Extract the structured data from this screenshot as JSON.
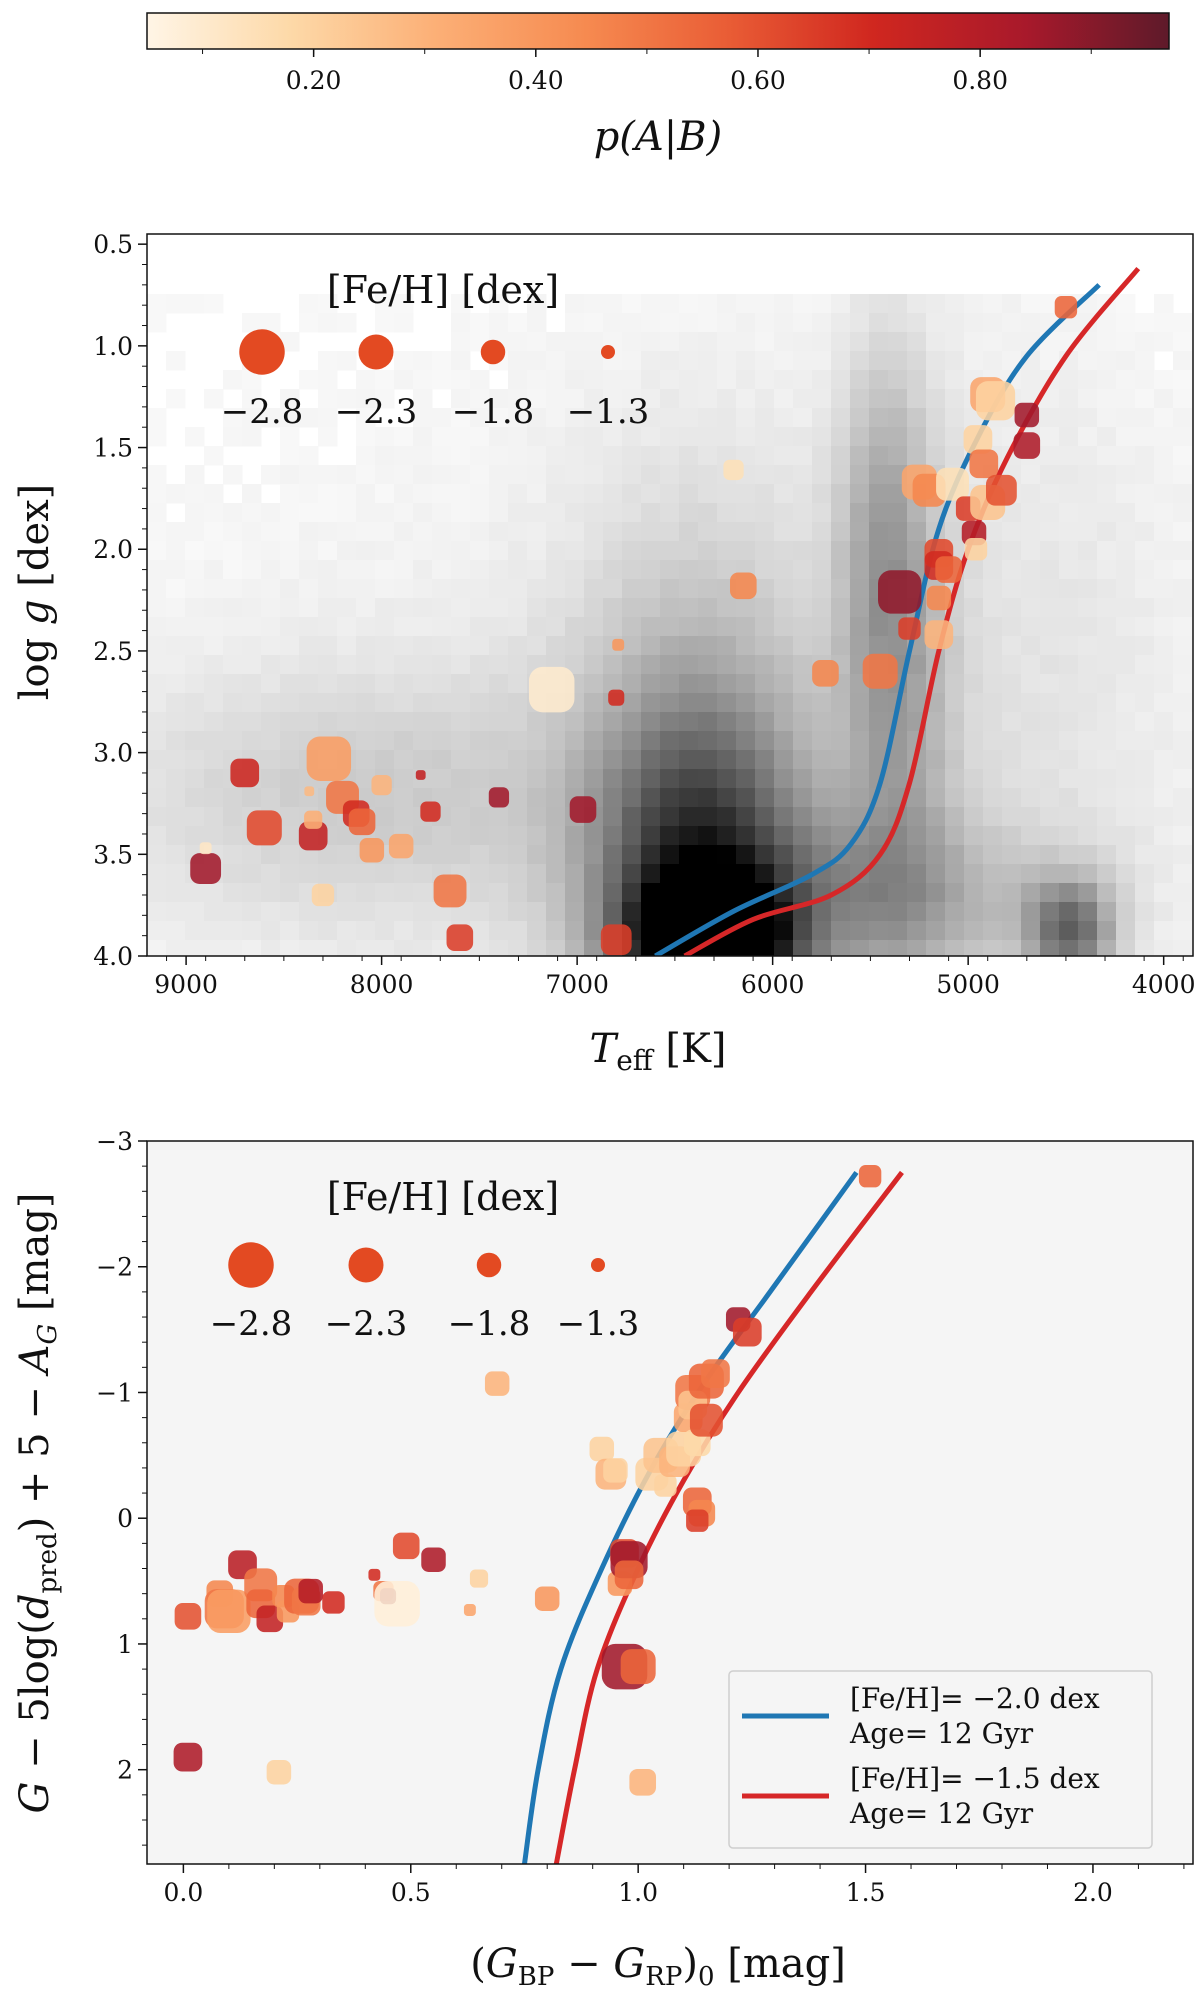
{
  "colorbar": {
    "label": "p(A|B)",
    "ticks": [
      "0.20",
      "0.40",
      "0.60",
      "0.80"
    ],
    "tick_values": [
      0.2,
      0.4,
      0.6,
      0.8
    ],
    "range": [
      0.05,
      0.97
    ],
    "colormap": [
      "#fff5e6",
      "#fdd9a8",
      "#fcb077",
      "#f68a50",
      "#e95c35",
      "#d0271f",
      "#a8192b",
      "#5e1a2a"
    ]
  },
  "chart_data": [
    {
      "type": "scatter",
      "xlabel": "T_eff [K]",
      "ylabel": "log g [dex]",
      "x_ticks": [
        "9000",
        "8000",
        "7000",
        "6000",
        "5000",
        "4000"
      ],
      "y_ticks": [
        "0.5",
        "1.0",
        "1.5",
        "2.0",
        "2.5",
        "3.0",
        "3.5",
        "4.0"
      ],
      "xlim": [
        9200,
        3850
      ],
      "ylim": [
        4.0,
        0.45
      ],
      "legend": {
        "title": "[Fe/H] [dex]",
        "labels": [
          "−2.8",
          "−2.3",
          "−1.8",
          "−1.3"
        ],
        "values": [
          -2.8,
          -2.3,
          -1.8,
          -1.3
        ]
      },
      "isochrones": [
        {
          "feh": -2.0,
          "color": "#1f77b4",
          "points": [
            [
              6600,
              4.0
            ],
            [
              6200,
              3.78
            ],
            [
              5800,
              3.6
            ],
            [
              5600,
              3.45
            ],
            [
              5450,
              3.15
            ],
            [
              5300,
              2.5
            ],
            [
              5150,
              1.9
            ],
            [
              4950,
              1.45
            ],
            [
              4700,
              1.05
            ],
            [
              4330,
              0.7
            ]
          ]
        },
        {
          "feh": -1.5,
          "color": "#d62728",
          "points": [
            [
              6450,
              4.0
            ],
            [
              6100,
              3.82
            ],
            [
              5700,
              3.7
            ],
            [
              5450,
              3.5
            ],
            [
              5300,
              3.15
            ],
            [
              5150,
              2.5
            ],
            [
              5000,
              2.0
            ],
            [
              4800,
              1.55
            ],
            [
              4500,
              1.05
            ],
            [
              4130,
              0.62
            ]
          ]
        }
      ],
      "points": [
        {
          "x": 8600,
          "y": 3.37,
          "feh": -2.3,
          "p": 0.62
        },
        {
          "x": 8700,
          "y": 3.1,
          "feh": -2.0,
          "p": 0.72
        },
        {
          "x": 8900,
          "y": 3.57,
          "feh": -2.1,
          "p": 0.85
        },
        {
          "x": 8900,
          "y": 3.47,
          "feh": -1.2,
          "p": 0.12
        },
        {
          "x": 8270,
          "y": 3.03,
          "feh": -2.75,
          "p": 0.38
        },
        {
          "x": 8350,
          "y": 3.41,
          "feh": -2.0,
          "p": 0.75
        },
        {
          "x": 8350,
          "y": 3.33,
          "feh": -1.5,
          "p": 0.32
        },
        {
          "x": 8370,
          "y": 3.19,
          "feh": -1.1,
          "p": 0.28
        },
        {
          "x": 8200,
          "y": 3.22,
          "feh": -2.2,
          "p": 0.5
        },
        {
          "x": 8130,
          "y": 3.3,
          "feh": -1.9,
          "p": 0.7
        },
        {
          "x": 8100,
          "y": 3.34,
          "feh": -1.9,
          "p": 0.55
        },
        {
          "x": 8050,
          "y": 3.48,
          "feh": -1.8,
          "p": 0.4
        },
        {
          "x": 8000,
          "y": 3.16,
          "feh": -1.6,
          "p": 0.3
        },
        {
          "x": 8300,
          "y": 3.7,
          "feh": -1.7,
          "p": 0.2
        },
        {
          "x": 7900,
          "y": 3.46,
          "feh": -1.8,
          "p": 0.35
        },
        {
          "x": 7800,
          "y": 3.11,
          "feh": -1.1,
          "p": 0.75
        },
        {
          "x": 7750,
          "y": 3.29,
          "feh": -1.6,
          "p": 0.7
        },
        {
          "x": 7650,
          "y": 3.68,
          "feh": -2.2,
          "p": 0.5
        },
        {
          "x": 7600,
          "y": 3.91,
          "feh": -1.9,
          "p": 0.65
        },
        {
          "x": 7400,
          "y": 3.22,
          "feh": -1.6,
          "p": 0.85
        },
        {
          "x": 7130,
          "y": 2.69,
          "feh": -2.8,
          "p": 0.1
        },
        {
          "x": 6970,
          "y": 3.28,
          "feh": -1.9,
          "p": 0.85
        },
        {
          "x": 6800,
          "y": 3.92,
          "feh": -2.1,
          "p": 0.65
        },
        {
          "x": 6800,
          "y": 2.73,
          "feh": -1.4,
          "p": 0.7
        },
        {
          "x": 6790,
          "y": 2.47,
          "feh": -1.2,
          "p": 0.4
        },
        {
          "x": 6200,
          "y": 1.61,
          "feh": -1.6,
          "p": 0.15
        },
        {
          "x": 6150,
          "y": 2.18,
          "feh": -1.9,
          "p": 0.45
        },
        {
          "x": 5730,
          "y": 2.61,
          "feh": -1.9,
          "p": 0.45
        },
        {
          "x": 5450,
          "y": 2.6,
          "feh": -2.3,
          "p": 0.5
        },
        {
          "x": 5350,
          "y": 2.21,
          "feh": -2.7,
          "p": 0.88
        },
        {
          "x": 5300,
          "y": 2.39,
          "feh": -1.7,
          "p": 0.65
        },
        {
          "x": 5250,
          "y": 1.67,
          "feh": -2.3,
          "p": 0.35
        },
        {
          "x": 5200,
          "y": 1.71,
          "feh": -2.2,
          "p": 0.45
        },
        {
          "x": 5150,
          "y": 2.02,
          "feh": -2.0,
          "p": 0.62
        },
        {
          "x": 5150,
          "y": 2.08,
          "feh": -2.0,
          "p": 0.7
        },
        {
          "x": 5150,
          "y": 2.24,
          "feh": -1.8,
          "p": 0.45
        },
        {
          "x": 5150,
          "y": 2.42,
          "feh": -2.0,
          "p": 0.3
        },
        {
          "x": 5100,
          "y": 2.1,
          "feh": -1.9,
          "p": 0.55
        },
        {
          "x": 5080,
          "y": 1.68,
          "feh": -2.2,
          "p": 0.15
        },
        {
          "x": 5000,
          "y": 1.8,
          "feh": -1.8,
          "p": 0.65
        },
        {
          "x": 4970,
          "y": 1.92,
          "feh": -1.8,
          "p": 0.8
        },
        {
          "x": 4960,
          "y": 2.0,
          "feh": -1.7,
          "p": 0.2
        },
        {
          "x": 4950,
          "y": 1.46,
          "feh": -2.0,
          "p": 0.2
        },
        {
          "x": 4920,
          "y": 1.58,
          "feh": -2.0,
          "p": 0.5
        },
        {
          "x": 4900,
          "y": 1.77,
          "feh": -2.3,
          "p": 0.25
        },
        {
          "x": 4900,
          "y": 1.24,
          "feh": -2.3,
          "p": 0.35
        },
        {
          "x": 4860,
          "y": 1.27,
          "feh": -2.5,
          "p": 0.2
        },
        {
          "x": 4830,
          "y": 1.71,
          "feh": -2.1,
          "p": 0.6
        },
        {
          "x": 4700,
          "y": 1.34,
          "feh": -1.8,
          "p": 0.85
        },
        {
          "x": 4700,
          "y": 1.49,
          "feh": -1.9,
          "p": 0.82
        },
        {
          "x": 4500,
          "y": 0.81,
          "feh": -1.7,
          "p": 0.55
        }
      ]
    },
    {
      "type": "scatter",
      "xlabel": "(G_BP − G_RP)_0 [mag]",
      "ylabel": "G − 5log(d_pred) + 5 − A_G [mag]",
      "x_ticks": [
        "0.0",
        "0.5",
        "1.0",
        "1.5",
        "2.0"
      ],
      "y_ticks": [
        "−3",
        "−2",
        "−1",
        "0",
        "1",
        "2"
      ],
      "xlim": [
        -0.08,
        2.22
      ],
      "ylim": [
        2.75,
        -3.0
      ],
      "legend": {
        "title": "[Fe/H] [dex]",
        "labels": [
          "−2.8",
          "−2.3",
          "−1.8",
          "−1.3"
        ],
        "values": [
          -2.8,
          -2.3,
          -1.8,
          -1.3
        ]
      },
      "isochrones": [
        {
          "label": "[Fe/H]= −2.0 dex",
          "age": "Age= 12 Gyr",
          "color": "#1f77b4",
          "points": [
            [
              0.75,
              2.75
            ],
            [
              0.78,
              2.0
            ],
            [
              0.83,
              1.2
            ],
            [
              0.92,
              0.4
            ],
            [
              1.03,
              -0.4
            ],
            [
              1.15,
              -1.1
            ],
            [
              1.29,
              -1.8
            ],
            [
              1.48,
              -2.75
            ]
          ]
        },
        {
          "label": "[Fe/H]= −1.5 dex",
          "age": "Age= 12 Gyr",
          "color": "#d62728",
          "points": [
            [
              0.82,
              2.75
            ],
            [
              0.86,
              2.0
            ],
            [
              0.91,
              1.2
            ],
            [
              1.0,
              0.4
            ],
            [
              1.1,
              -0.3
            ],
            [
              1.22,
              -1.0
            ],
            [
              1.38,
              -1.8
            ],
            [
              1.58,
              -2.75
            ]
          ]
        }
      ],
      "points": [
        {
          "x": 0.01,
          "y": 0.78,
          "feh": -1.9,
          "p": 0.6
        },
        {
          "x": 0.01,
          "y": 1.9,
          "feh": -2.0,
          "p": 0.82
        },
        {
          "x": 0.08,
          "y": 0.6,
          "feh": -1.9,
          "p": 0.45
        },
        {
          "x": 0.09,
          "y": 0.72,
          "feh": -2.5,
          "p": 0.5
        },
        {
          "x": 0.1,
          "y": 0.74,
          "feh": -2.7,
          "p": 0.38
        },
        {
          "x": 0.13,
          "y": 0.37,
          "feh": -2.0,
          "p": 0.78
        },
        {
          "x": 0.17,
          "y": 0.53,
          "feh": -2.2,
          "p": 0.5
        },
        {
          "x": 0.17,
          "y": 0.68,
          "feh": -2.0,
          "p": 0.55
        },
        {
          "x": 0.19,
          "y": 0.8,
          "feh": -1.9,
          "p": 0.75
        },
        {
          "x": 0.21,
          "y": 2.02,
          "feh": -1.8,
          "p": 0.2
        },
        {
          "x": 0.22,
          "y": 0.62,
          "feh": -1.7,
          "p": 0.45
        },
        {
          "x": 0.23,
          "y": 0.74,
          "feh": -1.7,
          "p": 0.4
        },
        {
          "x": 0.26,
          "y": 0.62,
          "feh": -2.3,
          "p": 0.55
        },
        {
          "x": 0.27,
          "y": 0.66,
          "feh": -2.0,
          "p": 0.5
        },
        {
          "x": 0.28,
          "y": 0.58,
          "feh": -1.8,
          "p": 0.8
        },
        {
          "x": 0.33,
          "y": 0.67,
          "feh": -1.7,
          "p": 0.7
        },
        {
          "x": 0.42,
          "y": 0.45,
          "feh": -1.2,
          "p": 0.7
        },
        {
          "x": 0.44,
          "y": 0.58,
          "feh": -1.6,
          "p": 0.5
        },
        {
          "x": 0.45,
          "y": 0.62,
          "feh": -1.4,
          "p": 0.9
        },
        {
          "x": 0.47,
          "y": 0.68,
          "feh": -2.8,
          "p": 0.08
        },
        {
          "x": 0.49,
          "y": 0.22,
          "feh": -1.9,
          "p": 0.62
        },
        {
          "x": 0.55,
          "y": 0.33,
          "feh": -1.8,
          "p": 0.82
        },
        {
          "x": 0.63,
          "y": 0.73,
          "feh": -1.2,
          "p": 0.35
        },
        {
          "x": 0.65,
          "y": 0.48,
          "feh": -1.5,
          "p": 0.2
        },
        {
          "x": 0.69,
          "y": -1.07,
          "feh": -1.8,
          "p": 0.3
        },
        {
          "x": 0.8,
          "y": 0.64,
          "feh": -1.8,
          "p": 0.4
        },
        {
          "x": 0.92,
          "y": -0.55,
          "feh": -1.8,
          "p": 0.2
        },
        {
          "x": 0.94,
          "y": -0.35,
          "feh": -2.1,
          "p": 0.3
        },
        {
          "x": 0.95,
          "y": -0.38,
          "feh": -1.8,
          "p": 0.2
        },
        {
          "x": 0.96,
          "y": 0.52,
          "feh": -1.8,
          "p": 0.4
        },
        {
          "x": 0.97,
          "y": 0.28,
          "feh": -2.0,
          "p": 0.62
        },
        {
          "x": 0.98,
          "y": 0.33,
          "feh": -2.4,
          "p": 0.85
        },
        {
          "x": 0.98,
          "y": 0.45,
          "feh": -2.0,
          "p": 0.55
        },
        {
          "x": 0.97,
          "y": 1.18,
          "feh": -2.8,
          "p": 0.85
        },
        {
          "x": 1.0,
          "y": 1.18,
          "feh": -2.3,
          "p": 0.55
        },
        {
          "x": 1.01,
          "y": 2.1,
          "feh": -1.9,
          "p": 0.3
        },
        {
          "x": 1.03,
          "y": -0.35,
          "feh": -2.2,
          "p": 0.2
        },
        {
          "x": 1.05,
          "y": -0.5,
          "feh": -2.3,
          "p": 0.25
        },
        {
          "x": 1.06,
          "y": -0.26,
          "feh": -1.7,
          "p": 0.2
        },
        {
          "x": 1.08,
          "y": -0.45,
          "feh": -2.1,
          "p": 0.3
        },
        {
          "x": 1.1,
          "y": -0.55,
          "feh": -2.3,
          "p": 0.2
        },
        {
          "x": 1.11,
          "y": -0.8,
          "feh": -2.0,
          "p": 0.35
        },
        {
          "x": 1.12,
          "y": -1.0,
          "feh": -2.3,
          "p": 0.5
        },
        {
          "x": 1.12,
          "y": -0.9,
          "feh": -2.0,
          "p": 0.25
        },
        {
          "x": 1.13,
          "y": -0.6,
          "feh": -1.9,
          "p": 0.18
        },
        {
          "x": 1.13,
          "y": -0.13,
          "feh": -2.0,
          "p": 0.55
        },
        {
          "x": 1.14,
          "y": -0.04,
          "feh": -1.9,
          "p": 0.45
        },
        {
          "x": 1.13,
          "y": 0.02,
          "feh": -1.7,
          "p": 0.65
        },
        {
          "x": 1.15,
          "y": -1.09,
          "feh": -2.3,
          "p": 0.55
        },
        {
          "x": 1.15,
          "y": -0.78,
          "feh": -2.2,
          "p": 0.6
        },
        {
          "x": 1.17,
          "y": -1.15,
          "feh": -2.0,
          "p": 0.5
        },
        {
          "x": 1.22,
          "y": -1.58,
          "feh": -1.8,
          "p": 0.85
        },
        {
          "x": 1.24,
          "y": -1.48,
          "feh": -2.0,
          "p": 0.65
        },
        {
          "x": 1.51,
          "y": -2.72,
          "feh": -1.7,
          "p": 0.55
        }
      ]
    }
  ]
}
